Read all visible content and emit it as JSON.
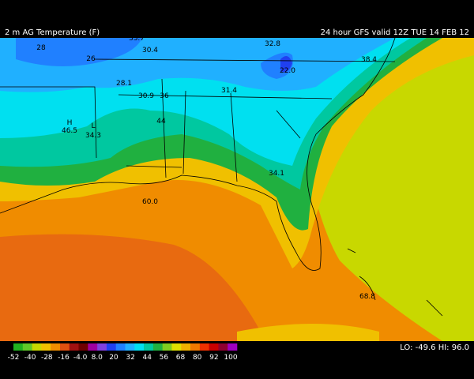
{
  "header": {
    "title": "2 m AG Temperature (F)",
    "valid": "24 hour GFS valid 12Z TUE 14 FEB 12"
  },
  "map_labels": [
    "28",
    "26",
    "33.7",
    "30.4",
    "32.8",
    "38.4",
    "28.1",
    "30.9",
    "36",
    "31.4",
    "22.0",
    "46.5",
    "34.3",
    "44",
    "34.1",
    "H",
    "L",
    "60.0",
    "68.8"
  ],
  "legend": {
    "labels": [
      "-52",
      "-40",
      "-28",
      "-16",
      "-4.0",
      "8.0",
      "20",
      "32",
      "44",
      "56",
      "68",
      "80",
      "92",
      "100"
    ],
    "colors": [
      "#20b020",
      "#60c828",
      "#c8d800",
      "#f0c000",
      "#f08c00",
      "#e05010",
      "#a01010",
      "#700000",
      "#a000a0",
      "#8040e0",
      "#2040f0",
      "#2080ff",
      "#20b0ff",
      "#00e0f0",
      "#00c8a0",
      "#20b040",
      "#80cc20",
      "#e0e000",
      "#f0b000",
      "#f07800",
      "#f03000",
      "#c80000",
      "#900030",
      "#a000c0"
    ]
  },
  "extremes": "LO: -49.6  HI: 96.0"
}
